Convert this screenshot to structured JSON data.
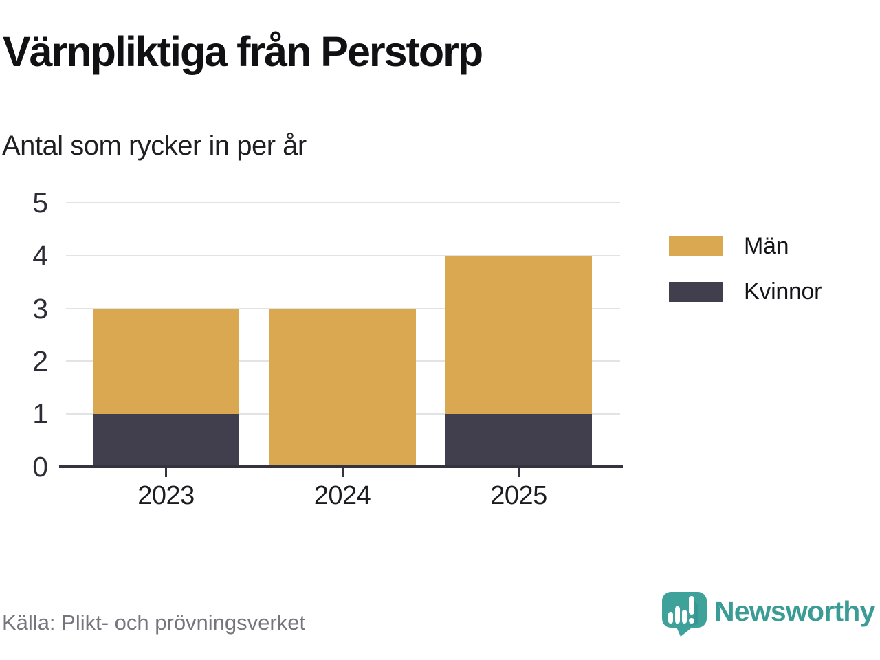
{
  "header": {
    "title": "Värnpliktiga från Perstorp",
    "subtitle": "Antal som rycker in per år"
  },
  "chart_data": {
    "type": "bar",
    "stacked": true,
    "title": "Värnpliktiga från Perstorp",
    "subtitle": "Antal som rycker in per år",
    "xlabel": "",
    "ylabel": "",
    "categories": [
      "2023",
      "2024",
      "2025"
    ],
    "series": [
      {
        "name": "Män",
        "color": "#d9a850",
        "values": [
          2,
          3,
          3
        ]
      },
      {
        "name": "Kvinnor",
        "color": "#413f4e",
        "values": [
          1,
          0,
          1
        ]
      }
    ],
    "stack_order_bottom_up": [
      "Kvinnor",
      "Män"
    ],
    "totals": [
      3,
      3,
      4
    ],
    "ylim": [
      0,
      5
    ],
    "yticks": [
      0,
      1,
      2,
      3,
      4,
      5
    ],
    "grid": "horizontal",
    "legend_position": "right"
  },
  "legend": {
    "items": [
      {
        "label": "Män",
        "color": "#d9a850"
      },
      {
        "label": "Kvinnor",
        "color": "#413f4e"
      }
    ]
  },
  "footer": {
    "source": "Källa: Plikt- och prövningsverket",
    "brand": "Newsworthy"
  },
  "colors": {
    "accent_gold": "#d9a850",
    "accent_dark": "#413f4e",
    "axis": "#34333e",
    "gridline": "#e3e3e3",
    "brand_teal": "#3a9c95",
    "source_gray": "#76757e"
  }
}
